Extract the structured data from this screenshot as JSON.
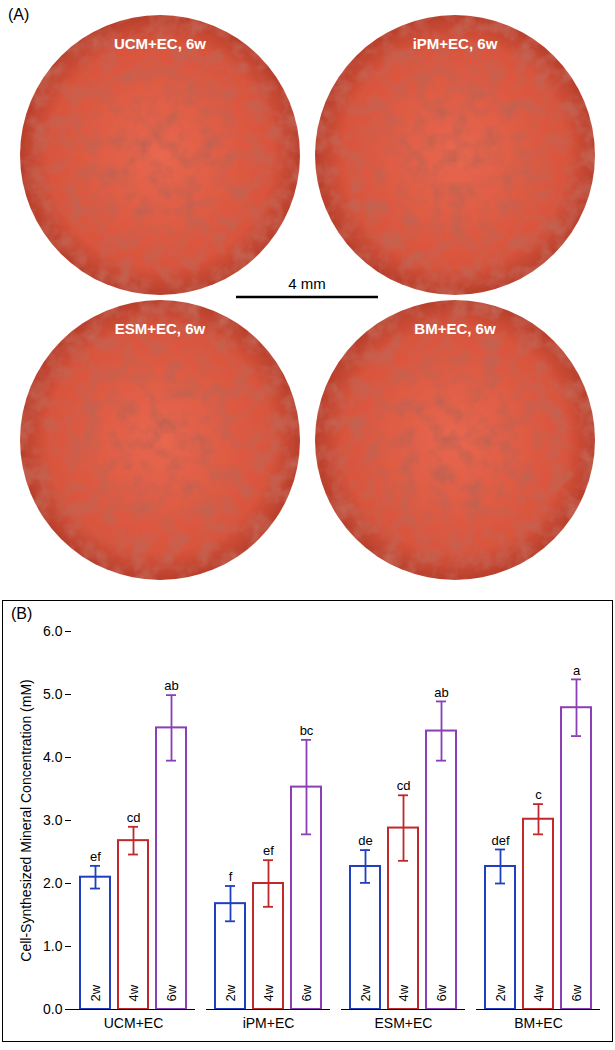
{
  "panel_a": {
    "label": "(A)",
    "scale_bar": "4 mm",
    "images": [
      {
        "label": "UCM+EC, 6w"
      },
      {
        "label": "iPM+EC, 6w"
      },
      {
        "label": "ESM+EC, 6w"
      },
      {
        "label": "BM+EC, 6w"
      }
    ]
  },
  "chart_data": {
    "type": "bar",
    "title": "(B)",
    "y_label": "Cell-Synthesized Mineral Concentration (mM)",
    "categories": [
      "UCM+EC",
      "iPM+EC",
      "ESM+EC",
      "BM+EC"
    ],
    "series": [
      {
        "name": "2w",
        "color": "#1f3fbf",
        "values": [
          2.1,
          1.68,
          2.27,
          2.27
        ],
        "errors": [
          0.18,
          0.28,
          0.26,
          0.27
        ],
        "letters": [
          "ef",
          "f",
          "de",
          "def"
        ]
      },
      {
        "name": "4w",
        "color": "#c0282b",
        "values": [
          2.68,
          2.0,
          2.88,
          3.02
        ],
        "errors": [
          0.22,
          0.37,
          0.52,
          0.24
        ],
        "letters": [
          "cd",
          "ef",
          "cd",
          "c"
        ]
      },
      {
        "name": "6w",
        "color": "#8a3fb5",
        "values": [
          4.47,
          3.53,
          4.42,
          4.79
        ],
        "errors": [
          0.52,
          0.75,
          0.47,
          0.45
        ],
        "letters": [
          "ab",
          "bc",
          "ab",
          "a"
        ]
      }
    ],
    "ylim": [
      0,
      6
    ],
    "yticks": [
      0,
      1,
      2,
      3,
      4,
      5,
      6
    ],
    "grid": false
  }
}
